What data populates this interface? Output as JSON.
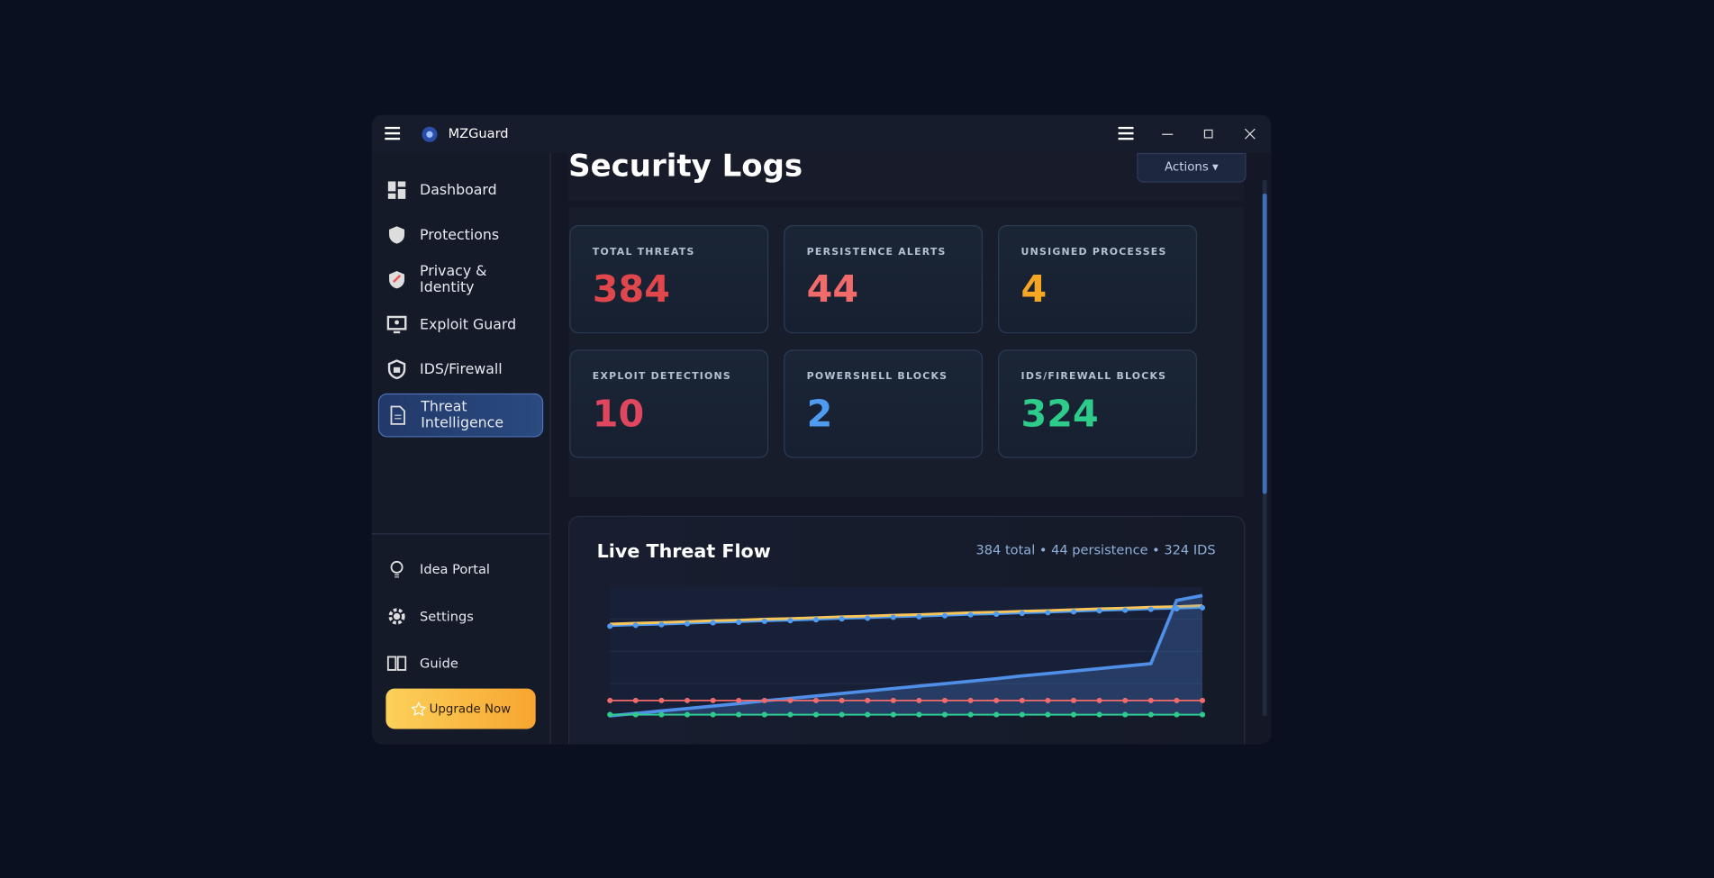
{
  "app": {
    "title": "MZGuard"
  },
  "nav": [
    "Dashboard",
    "Protections",
    "Privacy & Identity",
    "Exploit Guard",
    "IDS/Firewall",
    "Threat Intelligence"
  ],
  "footer_nav": [
    "Idea Portal",
    "Settings",
    "Guide"
  ],
  "upgrade": "Upgrade Now",
  "page": {
    "title": "Security Logs",
    "actions": "Actions ▾"
  },
  "stats": [
    {
      "label": "TOTAL THREATS",
      "value": 384,
      "color": "#e0474c"
    },
    {
      "label": "PERSISTENCE ALERTS",
      "value": 44,
      "color": "#f26b6b"
    },
    {
      "label": "UNSIGNED PROCESSES",
      "value": 4,
      "color": "#f5a623"
    },
    {
      "label": "EXPLOIT DETECTIONS",
      "value": 10,
      "color": "#e0475e"
    },
    {
      "label": "POWERSHELL BLOCKS",
      "value": 2,
      "color": "#4f9bef"
    },
    {
      "label": "IDS/FIREWALL BLOCKS",
      "value": 324,
      "color": "#2ecc8a"
    }
  ],
  "threat_flow": {
    "type": "line",
    "title": "Live Threat Flow",
    "summary": "384 total • 44 persistence • 324 IDS",
    "ylim": [
      0,
      420
    ],
    "series": [
      {
        "color": "#f7c55a",
        "dots": false,
        "area": false,
        "values": [
          298,
          301,
          303,
          306,
          309,
          311,
          314,
          316,
          319,
          322,
          324,
          327,
          329,
          332,
          335,
          337,
          340,
          342,
          345,
          348,
          350,
          353,
          355,
          358
        ]
      },
      {
        "color": "#4f8fe8",
        "dots": false,
        "area": true,
        "values": [
          0,
          8,
          16,
          24,
          32,
          40,
          49,
          57,
          65,
          73,
          81,
          89,
          97,
          105,
          113,
          121,
          130,
          138,
          146,
          154,
          162,
          170,
          376,
          392
        ]
      },
      {
        "color": "#4f9bef",
        "dots": true,
        "area": false,
        "values": [
          292,
          295,
          297,
          300,
          303,
          305,
          308,
          310,
          313,
          316,
          318,
          321,
          323,
          326,
          329,
          331,
          334,
          336,
          339,
          342,
          344,
          347,
          349,
          352
        ]
      },
      {
        "color": "#f26b6b",
        "dots": true,
        "area": false,
        "values": [
          50,
          50,
          50,
          50,
          50,
          50,
          50,
          50,
          50,
          50,
          50,
          50,
          50,
          50,
          50,
          50,
          50,
          50,
          50,
          50,
          50,
          50,
          50,
          50
        ]
      },
      {
        "color": "#2ecc8a",
        "dots": true,
        "area": false,
        "values": [
          4,
          4,
          4,
          4,
          4,
          4,
          4,
          4,
          4,
          4,
          4,
          4,
          4,
          4,
          4,
          4,
          4,
          4,
          4,
          4,
          4,
          4,
          4,
          4
        ]
      }
    ]
  }
}
